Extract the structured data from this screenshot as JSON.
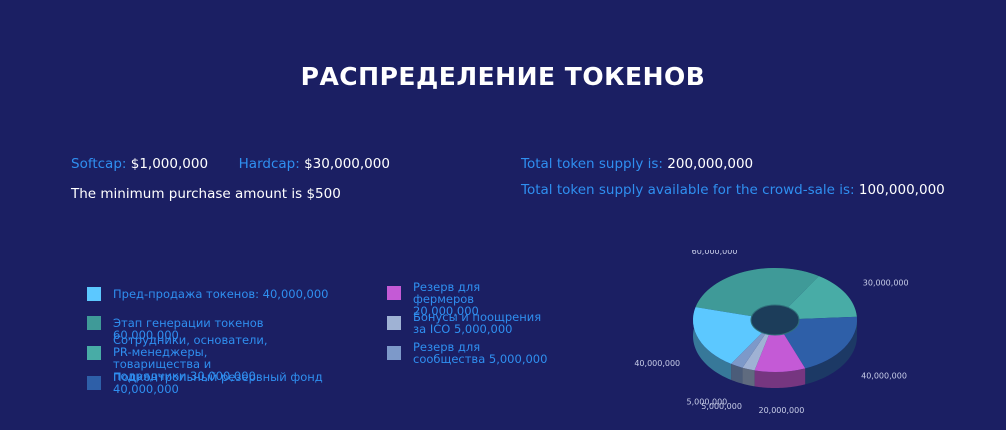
{
  "page": {
    "title": "РАСПРЕДЕЛЕНИЕ ТОКЕНОВ"
  },
  "caps": {
    "softcap_label": "Softcap:",
    "softcap_value": "$1,000,000",
    "hardcap_label": "Hardcap:",
    "hardcap_value": "$30,000,000",
    "min_purchase": "The minimum purchase amount is $500"
  },
  "supply": {
    "total_label": "Total token supply is:",
    "total_value": "200,000,000",
    "crowdsale_label": "Total token supply available for the crowd-sale is:",
    "crowdsale_value": "100,000,000"
  },
  "legend": [
    {
      "text": "Пред-продажа токенов: 40,000,000",
      "color": "#5cc8ff"
    },
    {
      "text": "Этап генерации токенов 60,000,000",
      "color": "#3f9a98"
    },
    {
      "text": "Сотрудники, основатели, PR-менеджеры, товарищества и подрядчики 30,000,000",
      "color": "#48aca6"
    },
    {
      "text": "Подконтрольный резервный фонд 40,000,000",
      "color": "#2e5fa8"
    },
    {
      "text": "Резерв для фермеров 20,000,000",
      "color": "#c45ad6"
    },
    {
      "text": "Бонусы и поощрения за ICO 5,000,000",
      "color": "#9fb2d4"
    },
    {
      "text": "Резерв для сообщества 5,000,000",
      "color": "#7d99c9"
    }
  ],
  "chart_data": {
    "type": "pie",
    "style": "3d-donut",
    "slices": [
      {
        "label": "60,000,000",
        "value": 60000000,
        "color": "#3f9a98"
      },
      {
        "label": "30,000,000",
        "value": 30000000,
        "color": "#48aca6"
      },
      {
        "label": "40,000,000",
        "value": 40000000,
        "color": "#2e5fa8"
      },
      {
        "label": "20,000,000",
        "value": 20000000,
        "color": "#c45ad6"
      },
      {
        "label": "5,000,000",
        "value": 5000000,
        "color": "#9fb2d4"
      },
      {
        "label": "5,000,000",
        "value": 5000000,
        "color": "#7d99c9"
      },
      {
        "label": "40,000,000",
        "value": 40000000,
        "color": "#5cc8ff"
      }
    ]
  }
}
